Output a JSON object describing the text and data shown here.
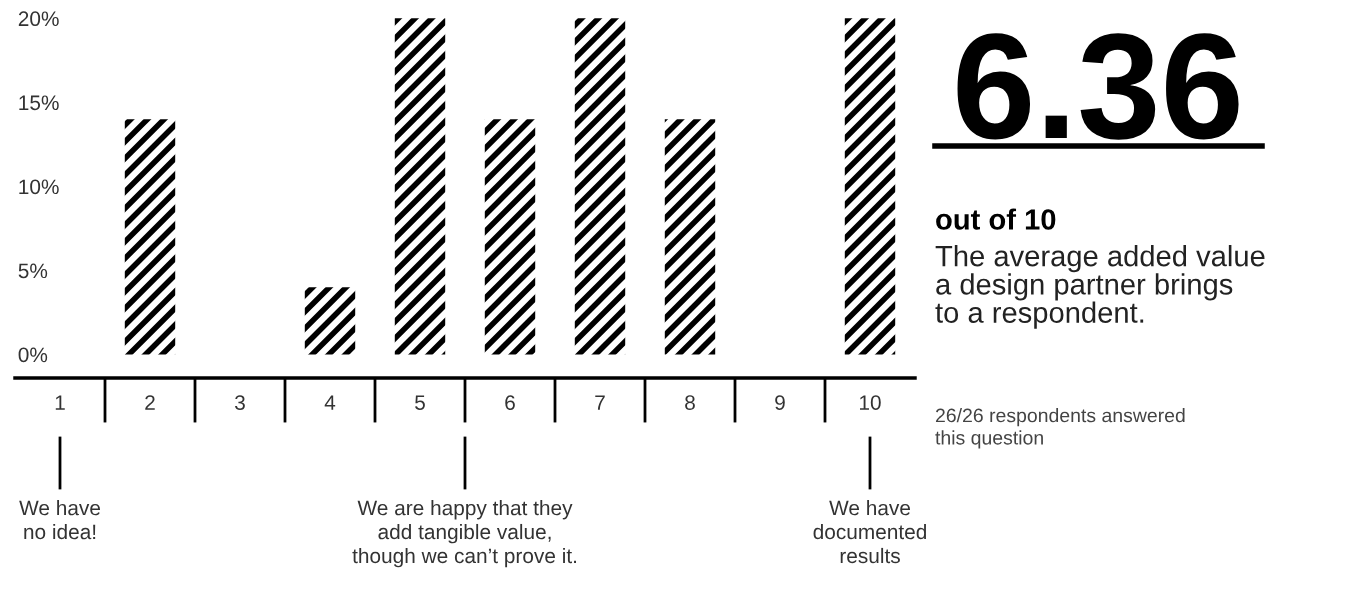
{
  "chart_data": {
    "type": "bar",
    "categories": [
      "1",
      "2",
      "3",
      "4",
      "5",
      "6",
      "7",
      "8",
      "9",
      "10"
    ],
    "values": [
      0,
      14,
      0,
      4,
      20,
      14,
      20,
      14,
      0,
      20
    ],
    "color": "#000000",
    "ylim": [
      -1.4,
      20.2
    ],
    "yticks": [
      {
        "value": 0,
        "label": "0%"
      },
      {
        "value": 5,
        "label": "5%"
      },
      {
        "value": 10,
        "label": "10%"
      },
      {
        "value": 15,
        "label": "15%"
      },
      {
        "value": 20,
        "label": "20%"
      }
    ],
    "grid": false,
    "annotations": [
      "6.36",
      "out of 10",
      "The average added value\na design partner brings\nto a respondent.",
      "26/26 respondents answered\nthis question",
      "We have\nno idea!",
      "We are happy that they\nadd tangible value,\nthough we can’t prove it.",
      "We have\ndocumented\nresults"
    ]
  }
}
